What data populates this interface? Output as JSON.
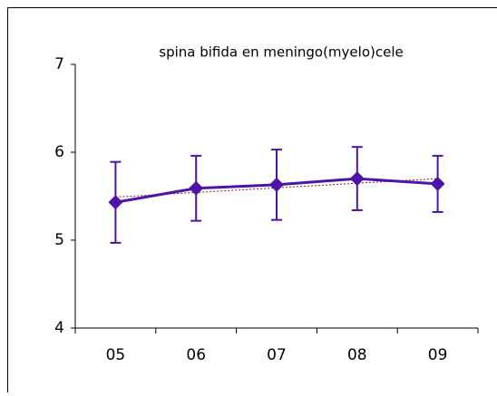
{
  "chart_data": {
    "type": "line",
    "title": "spina bifida en meningo(myelo)cele",
    "categories": [
      "05",
      "06",
      "07",
      "08",
      "09"
    ],
    "series": [
      {
        "color": "#4e14a8",
        "values": [
          5.43,
          5.59,
          5.63,
          5.7,
          5.64
        ],
        "errors": [
          0.46,
          0.37,
          0.4,
          0.36,
          0.32
        ]
      }
    ],
    "trendline": {
      "color": "#8b1a1a",
      "values": [
        5.49,
        5.7
      ]
    },
    "ylim": [
      4,
      7
    ],
    "yticks": [
      4,
      5,
      6,
      7
    ],
    "grid": false
  }
}
